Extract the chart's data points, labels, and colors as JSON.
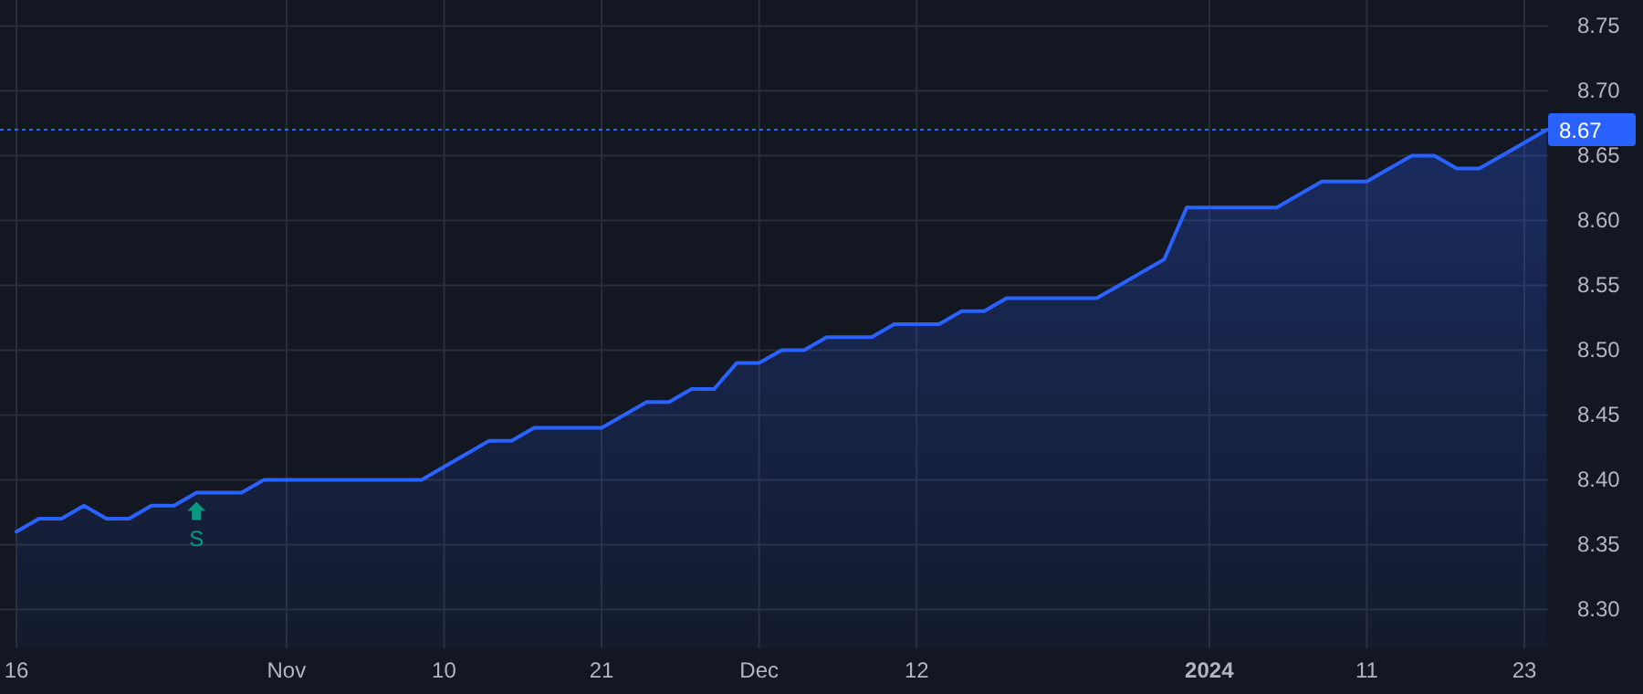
{
  "chart_data": {
    "type": "area",
    "categories": [
      "16",
      null,
      null,
      null,
      null,
      null,
      null,
      null,
      null,
      null,
      null,
      null,
      "Nov",
      null,
      null,
      null,
      null,
      null,
      null,
      "10",
      null,
      null,
      null,
      null,
      null,
      null,
      "21",
      null,
      null,
      null,
      null,
      null,
      null,
      "Dec",
      null,
      null,
      null,
      null,
      null,
      null,
      "12",
      null,
      null,
      null,
      null,
      null,
      null,
      null,
      null,
      null,
      null,
      null,
      null,
      "2024",
      null,
      null,
      null,
      null,
      null,
      null,
      "11",
      null,
      null,
      null,
      null,
      null,
      null,
      "23",
      null
    ],
    "series": [
      {
        "color": "#2962ff",
        "values": [
          8.36,
          8.37,
          8.37,
          8.38,
          8.37,
          8.37,
          8.38,
          8.38,
          8.39,
          8.39,
          8.39,
          8.4,
          8.4,
          8.4,
          8.4,
          8.4,
          8.4,
          8.4,
          8.4,
          8.41,
          8.42,
          8.43,
          8.43,
          8.44,
          8.44,
          8.44,
          8.44,
          8.45,
          8.46,
          8.46,
          8.47,
          8.47,
          8.49,
          8.49,
          8.5,
          8.5,
          8.51,
          8.51,
          8.51,
          8.52,
          8.52,
          8.52,
          8.53,
          8.53,
          8.54,
          8.54,
          8.54,
          8.54,
          8.54,
          8.55,
          8.56,
          8.57,
          8.61,
          8.61,
          8.61,
          8.61,
          8.61,
          8.62,
          8.63,
          8.63,
          8.63,
          8.64,
          8.65,
          8.65,
          8.64,
          8.64,
          8.65,
          8.66,
          8.67
        ]
      }
    ],
    "ylim": [
      8.27,
      8.77
    ],
    "yticks": [
      {
        "value": 8.3,
        "label": "8.30"
      },
      {
        "value": 8.35,
        "label": "8.35"
      },
      {
        "value": 8.4,
        "label": "8.40"
      },
      {
        "value": 8.45,
        "label": "8.45"
      },
      {
        "value": 8.5,
        "label": "8.50"
      },
      {
        "value": 8.55,
        "label": "8.55"
      },
      {
        "value": 8.6,
        "label": "8.60"
      },
      {
        "value": 8.65,
        "label": "8.65"
      },
      {
        "value": 8.7,
        "label": "8.70"
      },
      {
        "value": 8.75,
        "label": "8.75"
      }
    ],
    "grid": true,
    "ref_lines": [
      {
        "axis": "y",
        "value": 8.67,
        "label": "8.67",
        "color": "#2962ff",
        "line_style": "dotted"
      }
    ],
    "annotations": [
      "S"
    ]
  }
}
